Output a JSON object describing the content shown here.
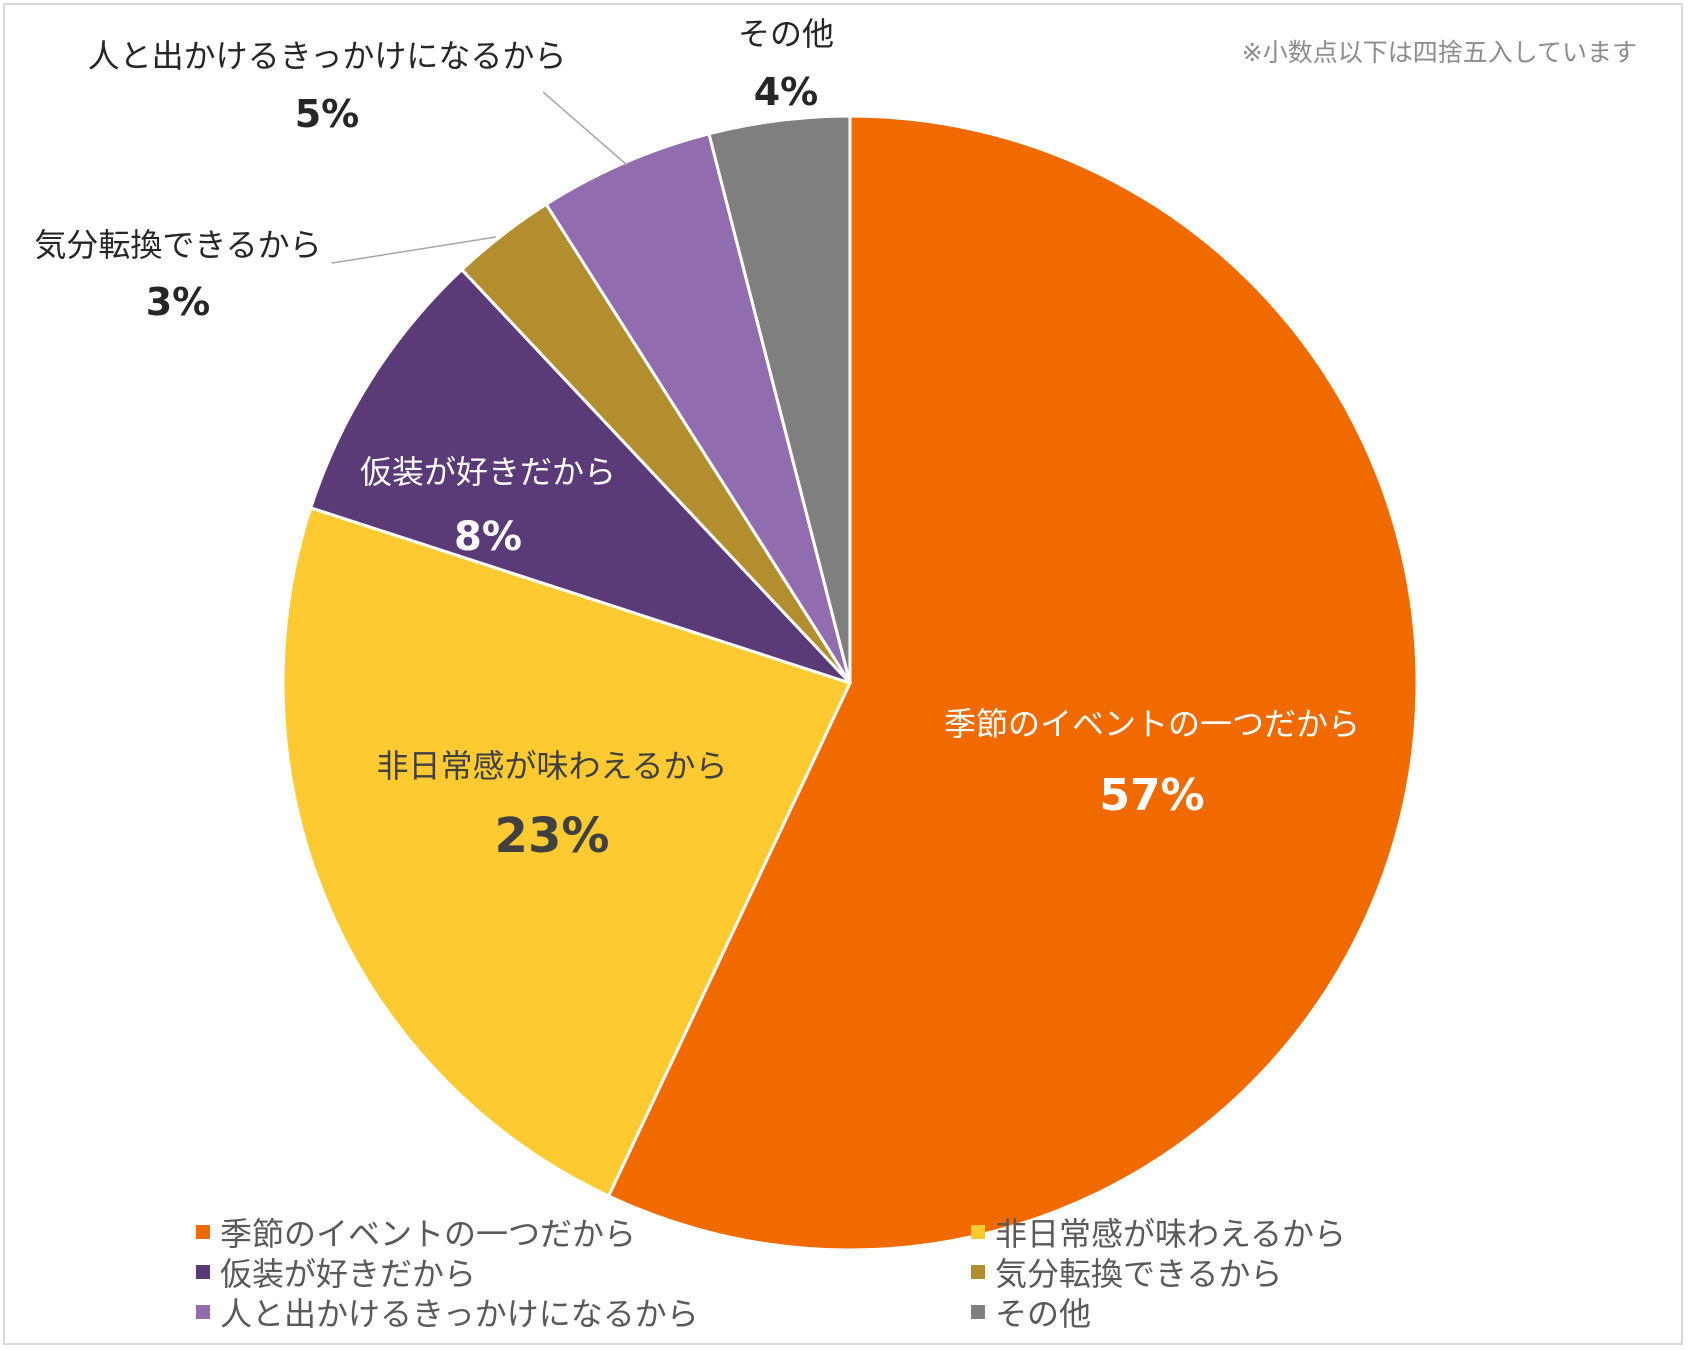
{
  "note": "※小数点以下は四捨五入しています",
  "chart_data": {
    "type": "pie",
    "title": "",
    "start_angle_deg": 0,
    "direction": "clockwise",
    "legend_position": "bottom",
    "slices": [
      {
        "label": "季節のイベントの一つだから",
        "value": 57,
        "display": "57%",
        "color": "#f06a00",
        "label_placement": "inside",
        "label_color": "#ffffff"
      },
      {
        "label": "非日常感が味わえるから",
        "value": 23,
        "display": "23%",
        "color": "#fdca32",
        "label_placement": "inside",
        "label_color": "#404040"
      },
      {
        "label": "仮装が好きだから",
        "value": 8,
        "display": "8%",
        "color": "#5b3a78",
        "label_placement": "inside",
        "label_color": "#ffffff"
      },
      {
        "label": "気分転換できるから",
        "value": 3,
        "display": "3%",
        "color": "#b38e2e",
        "label_placement": "outside",
        "label_color": "#262626"
      },
      {
        "label": "人と出かけるきっかけになるから",
        "value": 5,
        "display": "5%",
        "color": "#916db0",
        "label_placement": "outside",
        "label_color": "#262626"
      },
      {
        "label": "その他",
        "value": 4,
        "display": "4%",
        "color": "#7f7f7f",
        "label_placement": "outside",
        "label_color": "#262626"
      }
    ]
  }
}
